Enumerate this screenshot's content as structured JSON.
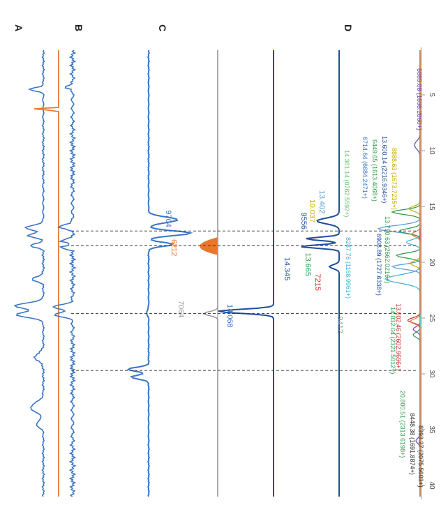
{
  "panel_labels": [
    "A",
    "B",
    "C",
    "D"
  ],
  "chart_data": {
    "type": "line",
    "orientation": "photographed sideways, rotated 90 degrees",
    "x_axis": {
      "ticks": [
        5,
        10,
        15,
        20,
        25,
        30,
        35,
        40
      ],
      "tick_labels": [
        "5",
        "10",
        "15",
        "20",
        "25",
        "30",
        "35",
        "40"
      ],
      "range": [
        1,
        41
      ]
    },
    "panels": [
      {
        "label": "A",
        "series": [
          {
            "color": "#3a74c4",
            "note": "blue trace"
          },
          {
            "color": "#e8772e",
            "note": "orange trace"
          }
        ]
      },
      {
        "label": "B",
        "series": [
          {
            "color": "#3a74c4"
          }
        ]
      },
      {
        "label": "C",
        "series": [
          {
            "color": "#3a74c4"
          },
          {
            "color": "#e8772e"
          },
          {
            "color": "#9a9a9a"
          }
        ]
      },
      {
        "label": "D",
        "series": [
          {
            "color": "#1f4e99"
          },
          {
            "color": "#e8772e"
          },
          {
            "color": "#9a9a9a"
          },
          {
            "color": "#c9a800"
          },
          {
            "color": "#5b9bd5"
          },
          {
            "color": "#2e9a4c"
          },
          {
            "color": "#7a3fb0"
          },
          {
            "color": "#d02d2d"
          },
          {
            "color": "#45b0d6"
          }
        ]
      }
    ],
    "dashed_markers_x": [
      17.2,
      18.5,
      24.6,
      29.7
    ],
    "peak_labels": [
      {
        "text": "9704",
        "x": 16.1,
        "color": "#3a74c4"
      },
      {
        "text": "6212",
        "x": 18.7,
        "color": "#e8772e"
      },
      {
        "text": "7064",
        "x": 24.2,
        "color": "#9a9a9a"
      },
      {
        "text": "14.068",
        "x": 24.8,
        "color": "#3a74c4"
      },
      {
        "text": "13.402",
        "x": 14.6,
        "color": "#5b9bd5"
      },
      {
        "text": "10.037",
        "x": 15.4,
        "color": "#c9a800"
      },
      {
        "text": "9556",
        "x": 16.3,
        "color": "#1f4e99"
      },
      {
        "text": "14.345",
        "x": 20.6,
        "color": "#1f4e99"
      },
      {
        "text": "13.665",
        "x": 20.2,
        "color": "#2e9a4c"
      },
      {
        "text": "7215",
        "x": 21.8,
        "color": "#d02d2d"
      },
      {
        "text": "9412",
        "x": 25.6,
        "color": "#9a9a9a"
      }
    ],
    "annotations": [
      {
        "text": "6889.08 (1698.2860+)",
        "color": "#7a3fb0"
      },
      {
        "text": "14.361.14 (0762.5592+)",
        "color": "#6fbf6f"
      },
      {
        "text": "6714.64 (6684.2471+)",
        "color": "#3a74c4"
      },
      {
        "text": "6449.65 (1613.4068+)",
        "color": "#2e9a4c"
      },
      {
        "text": "13.600.14 (2216.9346+)",
        "color": "#1f4e99"
      },
      {
        "text": "8888.63 (1673.7235+)",
        "color": "#c9a800"
      },
      {
        "text": "13.790.63 (2662.0216+)",
        "color": "#2e9a4c"
      },
      {
        "text": "6908.89 (1727.6338+)",
        "color": "#1f4e99"
      },
      {
        "text": "8287.76 (1168.9961+)",
        "color": "#45b0d6"
      },
      {
        "text": "13.002.46 (2602.9696+)",
        "color": "#d02d2d"
      },
      {
        "text": "14.032.04 (2321.5012+)",
        "color": "#2e9a4c"
      },
      {
        "text": "20.800.51 (2313.6198+)",
        "color": "#2e9a4c"
      },
      {
        "text": "8448.38 (1691.8874+)",
        "color": "#333333"
      },
      {
        "text": "8393.27 (2075.5603+)",
        "color": "#333333"
      }
    ]
  }
}
